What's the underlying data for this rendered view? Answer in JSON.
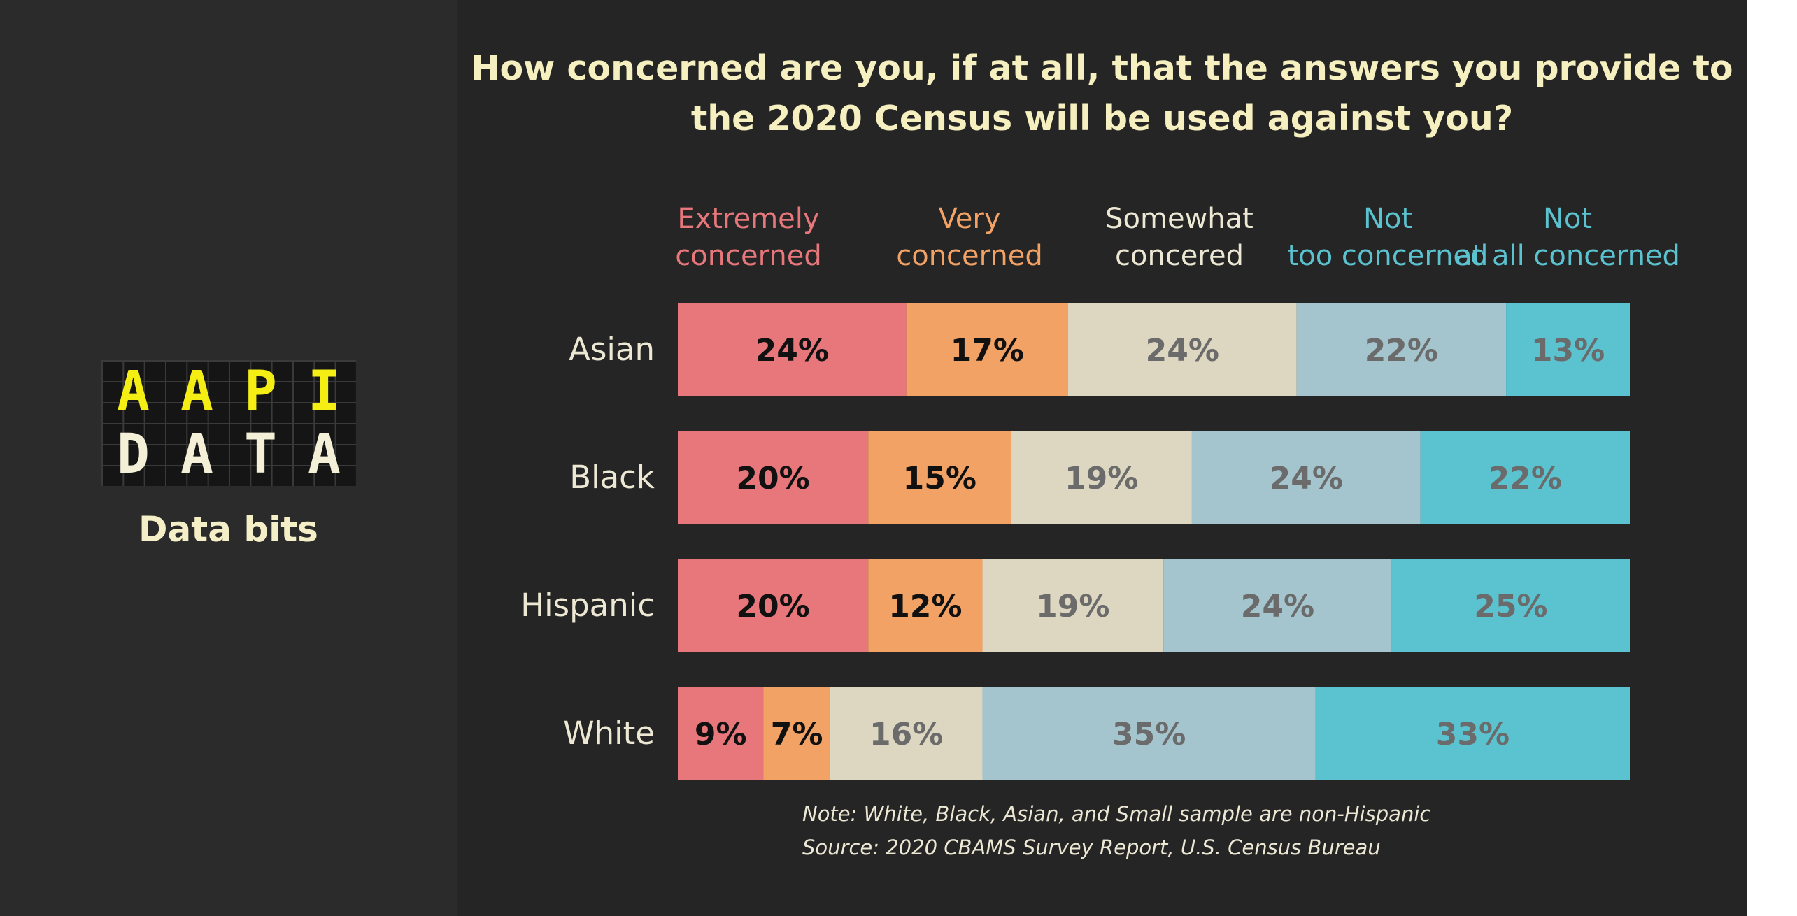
{
  "brand": {
    "logo_letters": [
      "A",
      "A",
      "P",
      "I",
      "D",
      "A",
      "T",
      "A"
    ],
    "subtitle": "Data bits",
    "colors": {
      "logo_yellow": "#f5ee15",
      "logo_cream": "#f4f0d8",
      "panel": "#2b2b2b"
    }
  },
  "chart_data": {
    "type": "bar",
    "orientation": "horizontal",
    "stacked": true,
    "title": "How concerned are you, if at all, that the answers you provide to the 2020 Census will be used against you?",
    "categories": [
      "Asian",
      "Black",
      "Hispanic",
      "White"
    ],
    "series": [
      {
        "name": "Extremely concerned",
        "values": [
          24,
          20,
          20,
          9
        ],
        "color": "#e8777c",
        "label_color": "#e8777c",
        "value_color": "#111111"
      },
      {
        "name": "Very concerned",
        "values": [
          17,
          15,
          12,
          7
        ],
        "color": "#f2a265",
        "label_color": "#f2a265",
        "value_color": "#111111"
      },
      {
        "name": "Somewhat concered",
        "values": [
          24,
          19,
          19,
          16
        ],
        "color": "#ddd7c1",
        "label_color": "#ece8d4",
        "value_color": "#6b6b6b"
      },
      {
        "name": "Not too concerned",
        "values": [
          22,
          24,
          24,
          35
        ],
        "color": "#a4c5cd",
        "label_color": "#5bc2d0",
        "value_color": "#6b6b6b"
      },
      {
        "name": "Not at all concerned",
        "values": [
          13,
          22,
          25,
          33
        ],
        "color": "#5bc2d0",
        "label_color": "#5bc2d0",
        "value_color": "#6b6b6b"
      }
    ],
    "value_suffix": "%",
    "legend_position": "top",
    "grid": false
  },
  "note": {
    "line1": "Note: White, Black, Asian, and Small sample are non-Hispanic",
    "line2": "Source: 2020 CBAMS Survey Report, U.S. Census Bureau"
  }
}
